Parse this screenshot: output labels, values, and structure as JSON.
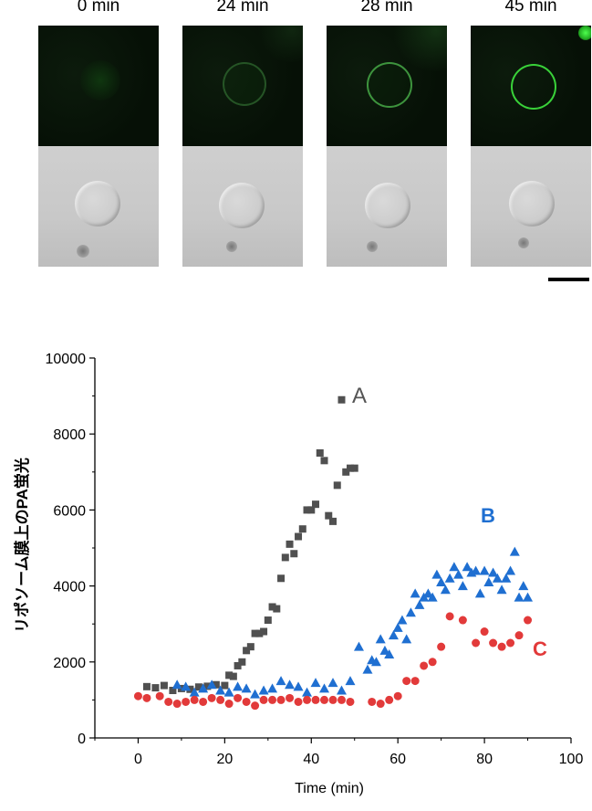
{
  "panels": {
    "labels": [
      "0 min",
      "24 min",
      "28 min",
      "45 min"
    ]
  },
  "chart_data": {
    "type": "scatter",
    "title": "",
    "xlabel": "Time (min)",
    "ylabel": "リポソーム膜上のPA蛍光",
    "xlim": [
      -10,
      100
    ],
    "ylim": [
      0,
      10000
    ],
    "xticks": [
      0,
      20,
      40,
      60,
      80,
      100
    ],
    "yticks": [
      0,
      2000,
      4000,
      6000,
      8000,
      10000
    ],
    "series": [
      {
        "name": "A",
        "marker": "square",
        "color": "#505050",
        "x": [
          2,
          4,
          6,
          8,
          10,
          12,
          14,
          16,
          18,
          20,
          21,
          22,
          23,
          24,
          25,
          26,
          27,
          28,
          29,
          30,
          31,
          32,
          33,
          34,
          35,
          36,
          37,
          38,
          39,
          40,
          41,
          42,
          43,
          44,
          45,
          46,
          47,
          48,
          49,
          50
        ],
        "y": [
          1350,
          1320,
          1380,
          1250,
          1300,
          1280,
          1340,
          1360,
          1400,
          1380,
          1650,
          1620,
          1900,
          2000,
          2300,
          2400,
          2750,
          2750,
          2800,
          3100,
          3450,
          3400,
          4200,
          4750,
          5100,
          4850,
          5300,
          5500,
          6000,
          6000,
          6150,
          7500,
          7300,
          5850,
          5700,
          6650,
          8900,
          7000,
          7100,
          7100
        ]
      },
      {
        "name": "B",
        "marker": "triangle",
        "color": "#1f6fd1",
        "x": [
          9,
          11,
          13,
          15,
          17,
          19,
          21,
          23,
          25,
          27,
          29,
          31,
          33,
          35,
          37,
          39,
          41,
          43,
          45,
          47,
          49,
          51,
          53,
          54,
          55,
          56,
          57,
          58,
          59,
          60,
          61,
          62,
          63,
          64,
          65,
          66,
          67,
          68,
          69,
          70,
          71,
          72,
          73,
          74,
          75,
          76,
          77,
          78,
          79,
          80,
          81,
          82,
          83,
          84,
          85,
          86,
          87,
          88,
          89,
          90
        ],
        "y": [
          1400,
          1350,
          1200,
          1300,
          1400,
          1250,
          1200,
          1350,
          1300,
          1150,
          1250,
          1300,
          1500,
          1400,
          1350,
          1200,
          1450,
          1300,
          1450,
          1250,
          1500,
          2400,
          1800,
          2050,
          2000,
          2600,
          2300,
          2200,
          2700,
          2900,
          3100,
          2600,
          3300,
          3800,
          3500,
          3700,
          3800,
          3700,
          4300,
          4100,
          3900,
          4200,
          4500,
          4300,
          4000,
          4500,
          4350,
          4400,
          3800,
          4400,
          4100,
          4350,
          4200,
          3900,
          4200,
          4400,
          4900,
          3700,
          4000,
          3700
        ]
      },
      {
        "name": "C",
        "marker": "circle",
        "color": "#e23a3a",
        "x": [
          0,
          2,
          5,
          7,
          9,
          11,
          13,
          15,
          17,
          19,
          21,
          23,
          25,
          27,
          29,
          31,
          33,
          35,
          37,
          39,
          41,
          43,
          45,
          47,
          49,
          54,
          56,
          58,
          60,
          62,
          64,
          66,
          68,
          70,
          72,
          75,
          78,
          80,
          82,
          84,
          86,
          88,
          90
        ],
        "y": [
          1100,
          1050,
          1100,
          950,
          900,
          950,
          1000,
          950,
          1050,
          1000,
          900,
          1050,
          950,
          850,
          1000,
          1000,
          1000,
          1050,
          950,
          1000,
          1000,
          1000,
          1000,
          1000,
          950,
          950,
          900,
          1000,
          1100,
          1500,
          1500,
          1900,
          2000,
          2400,
          3200,
          3100,
          2500,
          2800,
          2500,
          2400,
          2500,
          2700,
          3100
        ]
      }
    ],
    "annotations": [
      "A",
      "B",
      "C"
    ]
  }
}
